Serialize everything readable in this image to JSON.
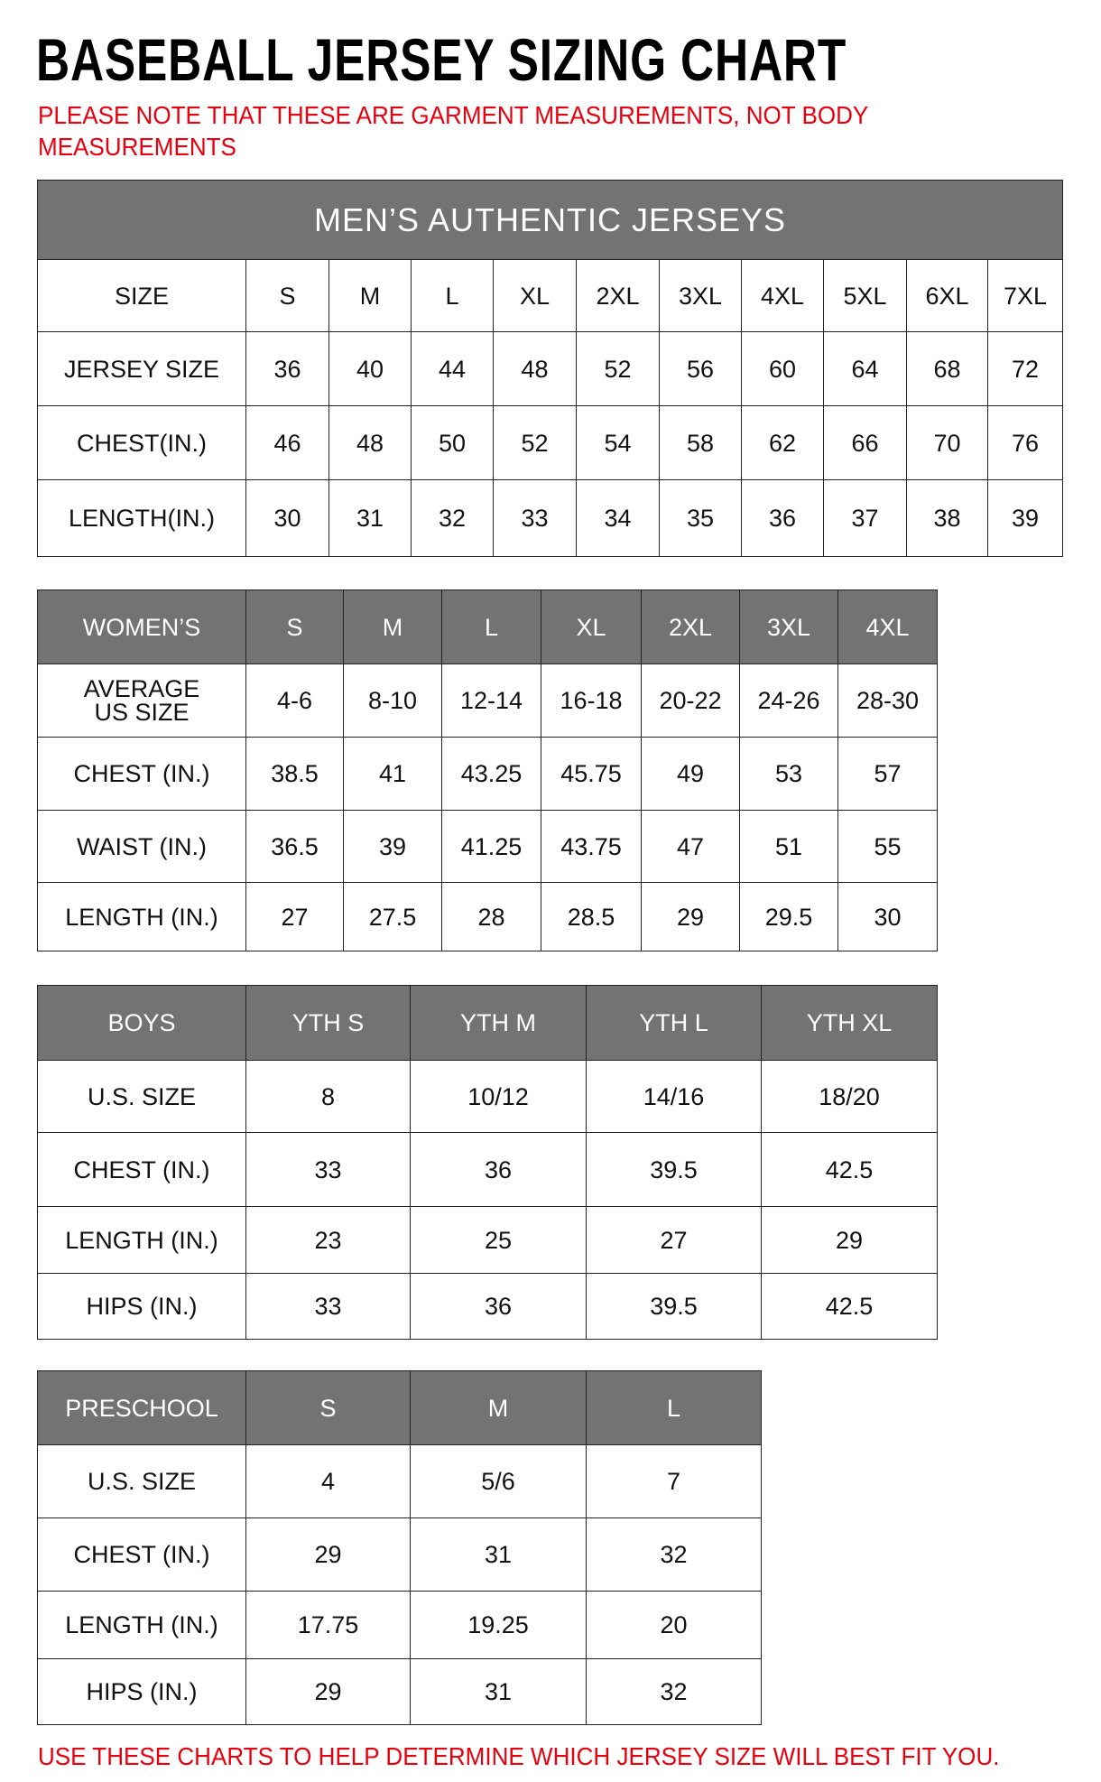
{
  "title": "BASEBALL JERSEY SIZING CHART",
  "note_top": "PLEASE NOTE THAT THESE ARE GARMENT MEASUREMENTS, NOT BODY MEASUREMENTS",
  "note_bottom": "USE THESE CHARTS TO HELP DETERMINE WHICH JERSEY SIZE WILL BEST FIT YOU.",
  "colors": {
    "header_bg": "#737373",
    "note_red": "#e8000f"
  },
  "tables": [
    {
      "id": "mens",
      "caption": "MEN’S AUTHENTIC JERSEYS",
      "header_style": "plain",
      "columns": [
        "SIZE",
        "S",
        "M",
        "L",
        "XL",
        "2XL",
        "3XL",
        "4XL",
        "5XL",
        "6XL",
        "7XL"
      ],
      "rows": [
        [
          "JERSEY SIZE",
          "36",
          "40",
          "44",
          "48",
          "52",
          "56",
          "60",
          "64",
          "68",
          "72"
        ],
        [
          "CHEST(IN.)",
          "46",
          "48",
          "50",
          "52",
          "54",
          "58",
          "62",
          "66",
          "70",
          "76"
        ],
        [
          "LENGTH(IN.)",
          "30",
          "31",
          "32",
          "33",
          "34",
          "35",
          "36",
          "37",
          "38",
          "39"
        ]
      ]
    },
    {
      "id": "womens",
      "columns": [
        "WOMEN’S",
        "S",
        "M",
        "L",
        "XL",
        "2XL",
        "3XL",
        "4XL"
      ],
      "rows": [
        [
          "AVERAGE US SIZE",
          "4-6",
          "8-10",
          "12-14",
          "16-18",
          "20-22",
          "24-26",
          "28-30"
        ],
        [
          "CHEST (IN.)",
          "38.5",
          "41",
          "43.25",
          "45.75",
          "49",
          "53",
          "57"
        ],
        [
          "WAIST (IN.)",
          "36.5",
          "39",
          "41.25",
          "43.75",
          "47",
          "51",
          "55"
        ],
        [
          "LENGTH (IN.)",
          "27",
          "27.5",
          "28",
          "28.5",
          "29",
          "29.5",
          "30"
        ]
      ]
    },
    {
      "id": "boys",
      "columns": [
        "BOYS",
        "YTH S",
        "YTH M",
        "YTH L",
        "YTH XL"
      ],
      "rows": [
        [
          "U.S. SIZE",
          "8",
          "10/12",
          "14/16",
          "18/20"
        ],
        [
          "CHEST (IN.)",
          "33",
          "36",
          "39.5",
          "42.5"
        ],
        [
          "LENGTH (IN.)",
          "23",
          "25",
          "27",
          "29"
        ],
        [
          "HIPS (IN.)",
          "33",
          "36",
          "39.5",
          "42.5"
        ]
      ]
    },
    {
      "id": "preschool",
      "columns": [
        "PRESCHOOL",
        "S",
        "M",
        "L"
      ],
      "rows": [
        [
          "U.S. SIZE",
          "4",
          "5/6",
          "7"
        ],
        [
          "CHEST (IN.)",
          "29",
          "31",
          "32"
        ],
        [
          "LENGTH (IN.)",
          "17.75",
          "19.25",
          "20"
        ],
        [
          "HIPS (IN.)",
          "29",
          "31",
          "32"
        ]
      ]
    }
  ]
}
